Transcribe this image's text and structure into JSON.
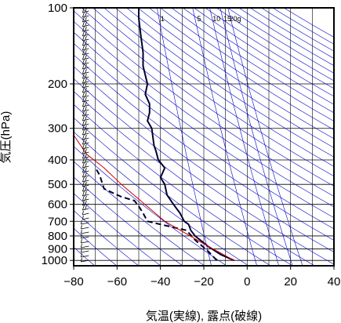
{
  "chart_data": {
    "type": "line",
    "title": "",
    "xlabel": "気温(実線), 露点(破線)",
    "ylabel": "気圧(hPa)",
    "xlim": [
      -80,
      40
    ],
    "ylim": [
      1050,
      100
    ],
    "y_scale": "log",
    "grid": true,
    "x_ticks": [
      -80,
      -60,
      -40,
      -20,
      0,
      20,
      40
    ],
    "y_ticks": [
      100,
      200,
      300,
      400,
      500,
      600,
      700,
      800,
      900,
      1000
    ],
    "mixing_ratio_labels": [
      "1",
      "5",
      "10",
      "15",
      "20g"
    ],
    "series": [
      {
        "role": "temperature",
        "style": "solid",
        "color": "#000033",
        "points": [
          {
            "t": -6,
            "p": 1000
          },
          {
            "t": -12,
            "p": 950
          },
          {
            "t": -18,
            "p": 880
          },
          {
            "t": -24,
            "p": 800
          },
          {
            "t": -26,
            "p": 760
          },
          {
            "t": -27,
            "p": 720
          },
          {
            "t": -29,
            "p": 700
          },
          {
            "t": -31,
            "p": 650
          },
          {
            "t": -34,
            "p": 600
          },
          {
            "t": -37,
            "p": 550
          },
          {
            "t": -38,
            "p": 500
          },
          {
            "t": -40,
            "p": 470
          },
          {
            "t": -38,
            "p": 430
          },
          {
            "t": -41,
            "p": 400
          },
          {
            "t": -42,
            "p": 370
          },
          {
            "t": -43,
            "p": 350
          },
          {
            "t": -44,
            "p": 300
          },
          {
            "t": -46,
            "p": 280
          },
          {
            "t": -45,
            "p": 260
          },
          {
            "t": -45,
            "p": 240
          },
          {
            "t": -47,
            "p": 220
          },
          {
            "t": -46,
            "p": 200
          },
          {
            "t": -48,
            "p": 170
          },
          {
            "t": -48,
            "p": 150
          },
          {
            "t": -49,
            "p": 130
          },
          {
            "t": -50,
            "p": 110
          },
          {
            "t": -50,
            "p": 100
          }
        ]
      },
      {
        "role": "dewpoint",
        "style": "dashed",
        "color": "#000033",
        "points": [
          {
            "t": -14,
            "p": 1000
          },
          {
            "t": -18,
            "p": 920
          },
          {
            "t": -24,
            "p": 830
          },
          {
            "t": -28,
            "p": 760
          },
          {
            "t": -40,
            "p": 720
          },
          {
            "t": -46,
            "p": 700
          },
          {
            "t": -48,
            "p": 650
          },
          {
            "t": -50,
            "p": 610
          },
          {
            "t": -52,
            "p": 580
          },
          {
            "t": -58,
            "p": 560
          },
          {
            "t": -62,
            "p": 540
          },
          {
            "t": -66,
            "p": 520
          },
          {
            "t": -68,
            "p": 460
          },
          {
            "t": -70,
            "p": 430
          }
        ]
      },
      {
        "role": "parcel",
        "style": "solid",
        "color": "#cc0000",
        "points": [
          {
            "t": -6,
            "p": 1000
          },
          {
            "t": -21,
            "p": 850
          },
          {
            "t": -38,
            "p": 700
          },
          {
            "t": -58,
            "p": 500
          },
          {
            "t": -66,
            "p": 430
          },
          {
            "t": -74,
            "p": 380
          },
          {
            "t": -81,
            "p": 310
          }
        ]
      }
    ],
    "wind_barbs_at_t": -73,
    "colors": {
      "frame": "#000000",
      "grid": "#000000",
      "isolines": "#0000cc"
    }
  }
}
